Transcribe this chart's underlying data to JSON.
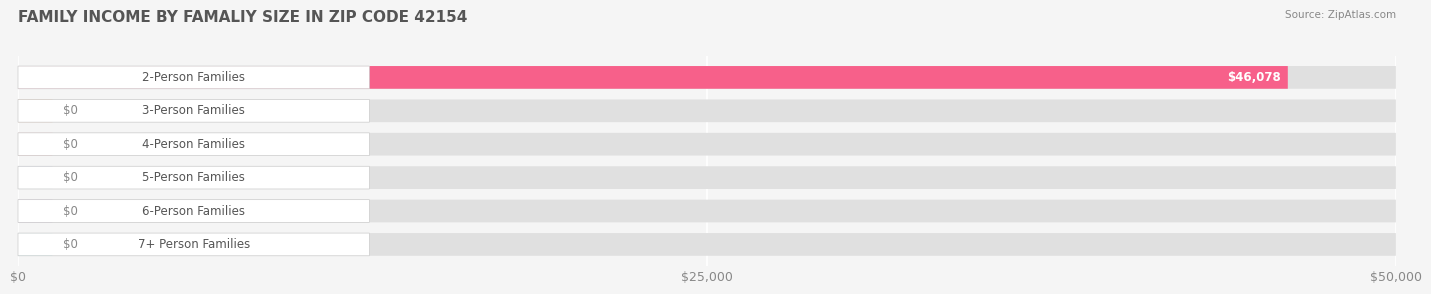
{
  "title": "FAMILY INCOME BY FAMALIY SIZE IN ZIP CODE 42154",
  "source": "Source: ZipAtlas.com",
  "categories": [
    "2-Person Families",
    "3-Person Families",
    "4-Person Families",
    "5-Person Families",
    "6-Person Families",
    "7+ Person Families"
  ],
  "values": [
    46078,
    0,
    0,
    0,
    0,
    0
  ],
  "bar_colors": [
    "#F7608A",
    "#F5B97F",
    "#F4A0A0",
    "#A8B8D8",
    "#C5A8D0",
    "#7ECDC8"
  ],
  "xlim": [
    0,
    50000
  ],
  "xticks": [
    0,
    25000,
    50000
  ],
  "xtick_labels": [
    "$0",
    "$25,000",
    "$50,000"
  ],
  "bar_label_value": [
    "$46,078",
    "$0",
    "$0",
    "$0",
    "$0",
    "$0"
  ],
  "background_color": "#f5f5f5",
  "title_fontsize": 11,
  "tick_fontsize": 9,
  "label_fontsize": 8.5
}
